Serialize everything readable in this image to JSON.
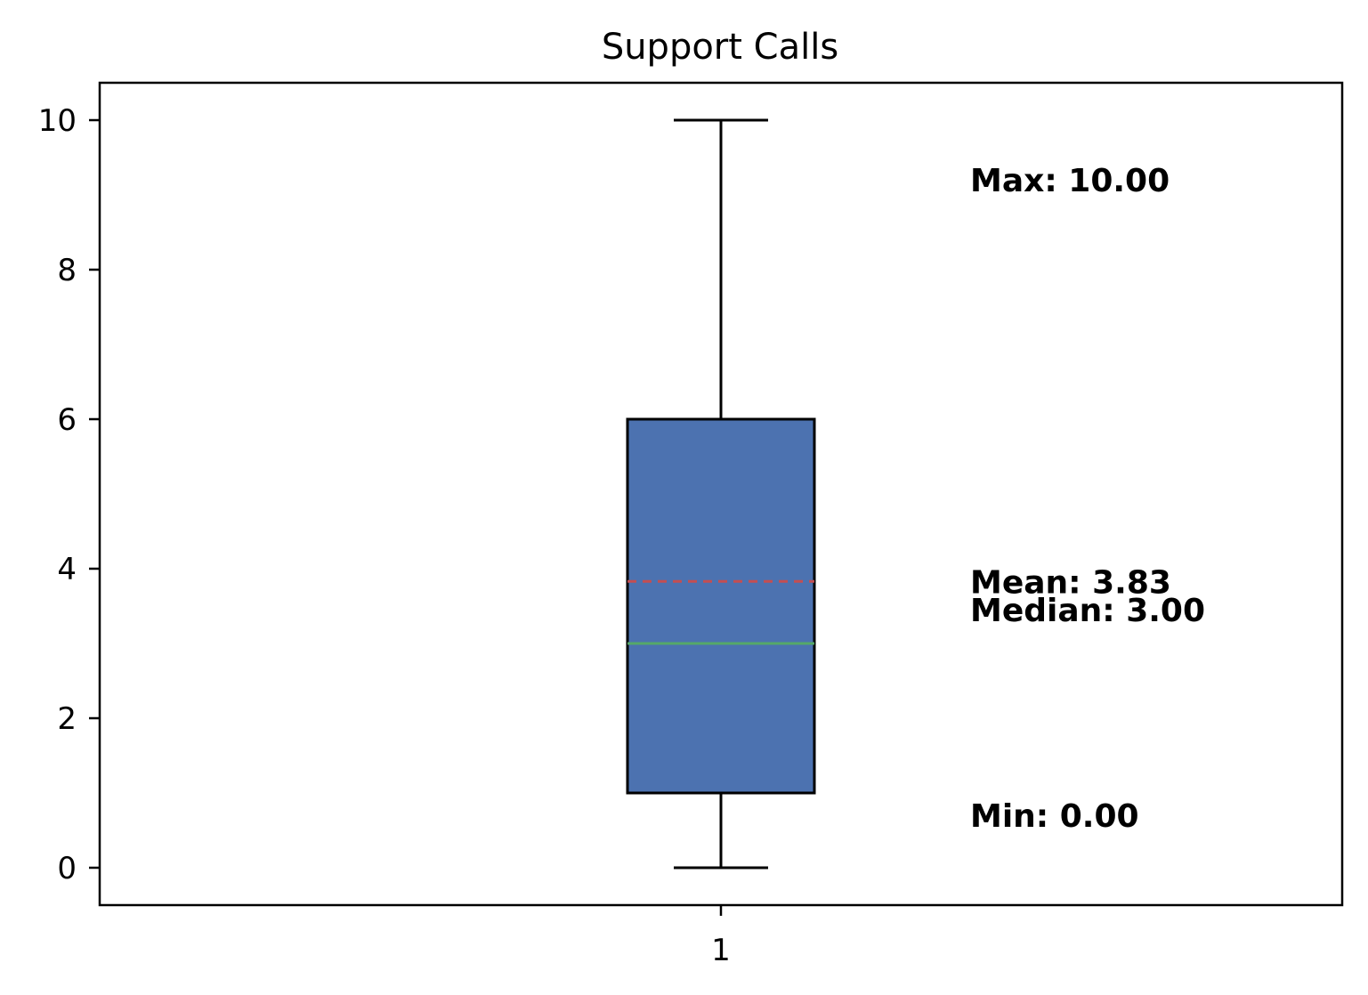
{
  "chart_data": {
    "type": "box",
    "title": "Support Calls",
    "xlabel": "",
    "ylabel": "",
    "categories": [
      "1"
    ],
    "ylim": [
      -0.5,
      10.5
    ],
    "yticks": [
      0,
      2,
      4,
      6,
      8,
      10
    ],
    "grid": false,
    "box": {
      "min": 0,
      "q1": 1,
      "median": 3,
      "mean": 3.83,
      "q3": 6,
      "max": 10
    },
    "annotations": [
      {
        "key": "max",
        "text": "Max: 10.00",
        "y": 9.2
      },
      {
        "key": "mean",
        "text": "Mean: 3.83",
        "y": 3.83
      },
      {
        "key": "median",
        "text": "Median: 3.00",
        "y": 3.45
      },
      {
        "key": "min",
        "text": "Min: 0.00",
        "y": 0.7
      }
    ],
    "colors": {
      "box_fill": "#4c72b0",
      "median_line": "#55a868",
      "mean_line": "#c44e52",
      "edge": "#000000"
    }
  }
}
